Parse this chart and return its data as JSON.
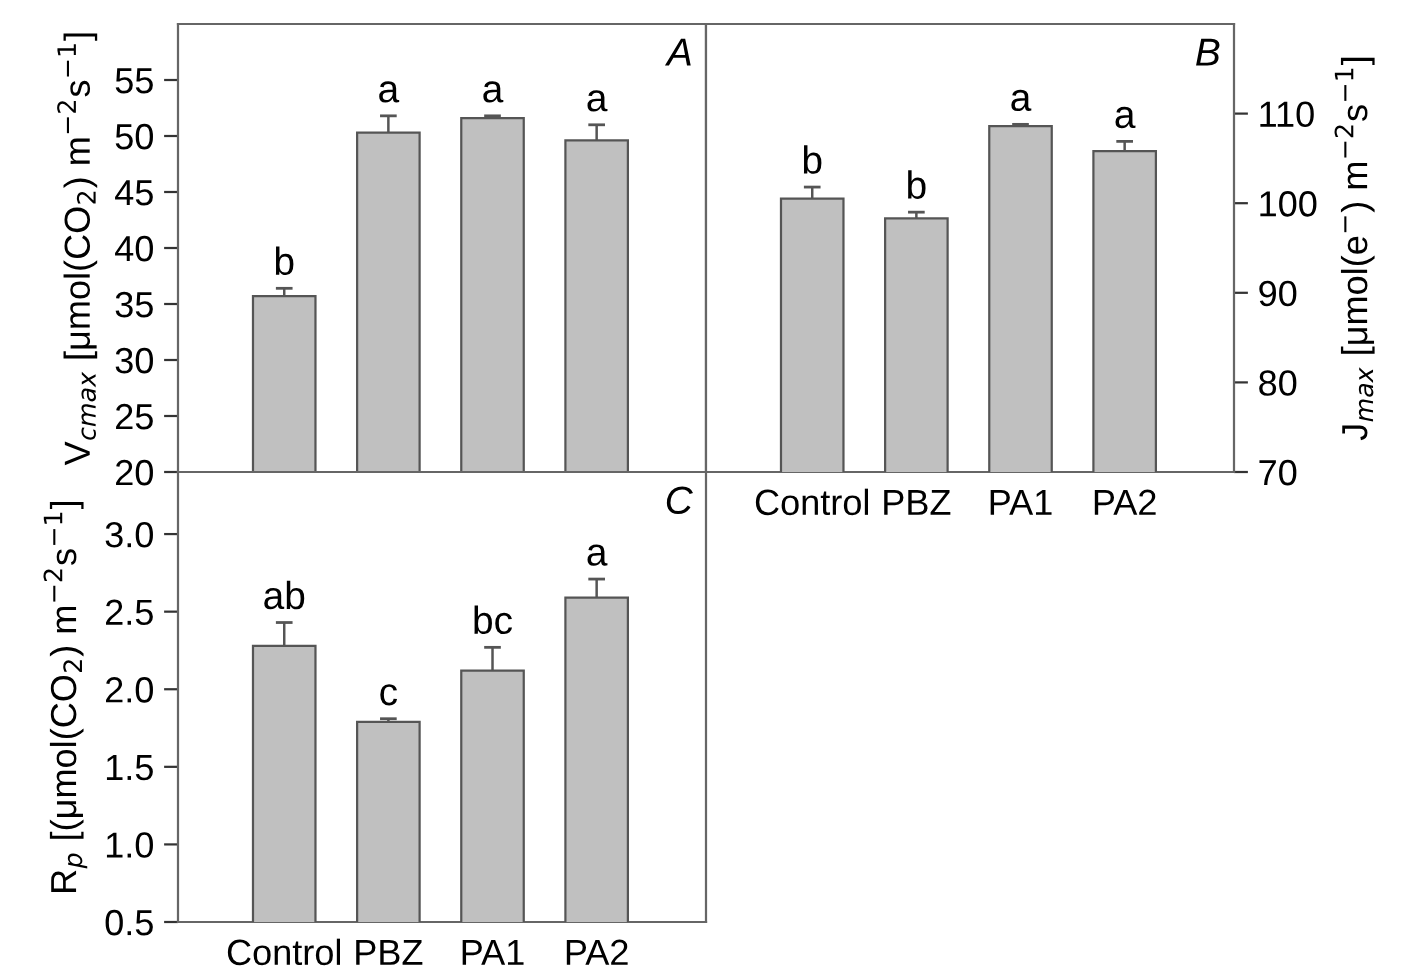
{
  "chart_data": [
    {
      "type": "bar",
      "categories": [
        "Control",
        "PBZ",
        "PA1",
        "PA2"
      ],
      "tick_labels": "y",
      "ylabel": "V$_{cmax}$ [μmol(CO$_{2}$) m$^{−2}$s$^{−1}$]",
      "ylim": [
        20,
        60
      ],
      "yticks": [
        20,
        25,
        30,
        35,
        40,
        45,
        50,
        55
      ],
      "series": [
        {
          "color": "#c0c0c0",
          "values": [
            35.7,
            50.3,
            51.6,
            49.6
          ],
          "errors": [
            0.7,
            1.5,
            0.2,
            1.4
          ]
        }
      ],
      "annotations": [
        "A",
        {
          "text": "b",
          "x": "Control",
          "y": 36.4
        },
        {
          "text": "a",
          "x": "PBZ",
          "y": 51.8
        },
        {
          "text": "a",
          "x": "PA1",
          "y": 51.8
        },
        {
          "text": "a",
          "x": "PA2",
          "y": 51.0
        }
      ]
    },
    {
      "type": "bar",
      "categories": [
        "Control",
        "PBZ",
        "PA1",
        "PA2"
      ],
      "ylabel": "J$_{max}$ [μmol(e$^{−}$) m$^{−2}$s$^{−1}$]",
      "ylim": [
        70,
        120
      ],
      "yticks": [
        70,
        80,
        90,
        100,
        110
      ],
      "series": [
        {
          "color": "#c0c0c0",
          "values": [
            100.5,
            98.3,
            108.6,
            105.8
          ],
          "errors": [
            1.3,
            0.7,
            0.2,
            1.1
          ]
        }
      ],
      "annotations": [
        "B",
        {
          "text": "b",
          "x": "Control",
          "y": 101.8
        },
        {
          "text": "b",
          "x": "PBZ",
          "y": 99.0
        },
        {
          "text": "a",
          "x": "PA1",
          "y": 108.8
        },
        {
          "text": "a",
          "x": "PA2",
          "y": 106.9
        }
      ]
    },
    {
      "type": "bar",
      "categories": [
        "Control",
        "PBZ",
        "PA1",
        "PA2"
      ],
      "ylabel": "R$_{p}$ [(μmol(CO$_{2}$) m$^{−2}$s$^{−1}$]",
      "ylim": [
        0.5,
        3.4
      ],
      "yticks": [
        {
          "value": 0.5,
          "label": "0.5"
        },
        {
          "value": 1.0,
          "label": "1.0"
        },
        {
          "value": 1.5,
          "label": "1.5"
        },
        {
          "value": 2.0,
          "label": "2.0"
        },
        {
          "value": 2.5,
          "label": "2.5"
        },
        {
          "value": 3.0,
          "label": "3.0"
        }
      ],
      "series": [
        {
          "color": "#c0c0c0",
          "values": [
            2.28,
            1.79,
            2.12,
            2.59
          ],
          "errors": [
            0.15,
            0.02,
            0.15,
            0.12
          ]
        }
      ],
      "annotations": [
        "C",
        {
          "text": "ab",
          "x": "Control",
          "y": 2.43
        },
        {
          "text": "c",
          "x": "PBZ",
          "y": 1.81
        },
        {
          "text": "bc",
          "x": "PA1",
          "y": 2.27
        },
        {
          "text": "a",
          "x": "PA2",
          "y": 2.71
        }
      ]
    }
  ]
}
